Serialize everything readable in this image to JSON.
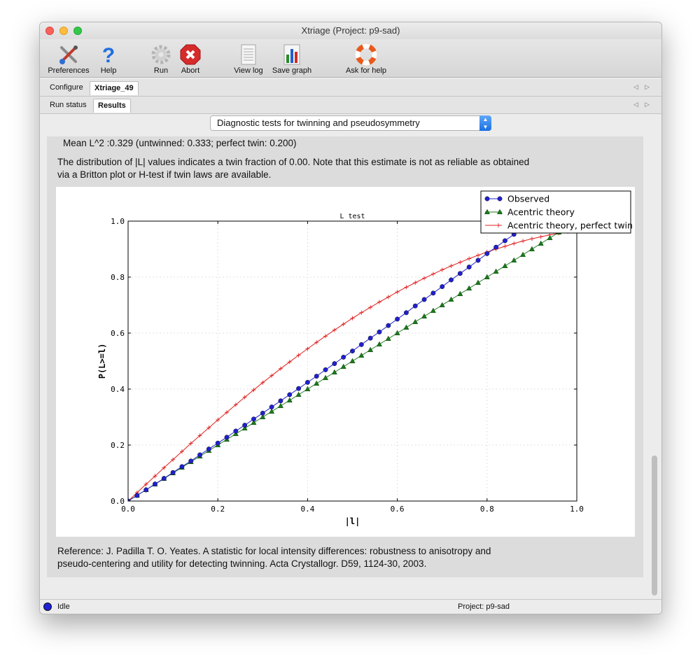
{
  "window": {
    "title": "Xtriage (Project: p9-sad)"
  },
  "toolbar": {
    "preferences": "Preferences",
    "help": "Help",
    "run": "Run",
    "abort": "Abort",
    "view_log": "View log",
    "save_graph": "Save graph",
    "ask_for_help": "Ask for help"
  },
  "tabs_top": [
    "Configure",
    "Xtriage_49"
  ],
  "tabs_sub": [
    "Run status",
    "Results"
  ],
  "section_selector": {
    "value": "Diagnostic tests for twinning and pseudosymmetry"
  },
  "results": {
    "mean_l2": "Mean  L^2  :0.329  (untwinned: 0.333; perfect twin: 0.200)",
    "distribution_line1": "The distribution of |L| values indicates a twin fraction of 0.00. Note that this estimate is not as reliable as obtained",
    "distribution_line2": "via a Britton plot or H-test if twin laws are available.",
    "reference_line1": "Reference: J. Padilla  T. O. Yeates. A statistic for local intensity differences: robustness to anisotropy and",
    "reference_line2": "pseudo-centering and utility for detecting twinning. Acta Crystallogr. D59, 1124-30, 2003."
  },
  "status": {
    "state": "Idle",
    "project": "Project: p9-sad"
  },
  "colors": {
    "observed": "#2020d0",
    "acentric": "#1a7a1a",
    "perfect_twin": "#e02020",
    "status_dot": "#1f22d6"
  },
  "chart_data": {
    "type": "line",
    "title": "L test",
    "xlabel": "|l|",
    "ylabel": "P(L>=l)",
    "xlim": [
      0,
      1
    ],
    "ylim": [
      0,
      1
    ],
    "x_ticks": [
      "0.0",
      "0.2",
      "0.4",
      "0.6",
      "0.8",
      "1.0"
    ],
    "y_ticks": [
      "0.0",
      "0.2",
      "0.4",
      "0.6",
      "0.8",
      "1.0"
    ],
    "grid": true,
    "legend_position": "top-right",
    "series": [
      {
        "name": "Observed",
        "marker": "circle",
        "x": [
          0,
          0.02,
          0.04,
          0.06,
          0.08,
          0.1,
          0.12,
          0.14,
          0.16,
          0.18,
          0.2,
          0.22,
          0.24,
          0.26,
          0.28,
          0.3,
          0.32,
          0.34,
          0.36,
          0.38,
          0.4,
          0.42,
          0.44,
          0.46,
          0.48,
          0.5,
          0.52,
          0.54,
          0.56,
          0.58,
          0.6,
          0.62,
          0.64,
          0.66,
          0.68,
          0.7,
          0.72,
          0.74,
          0.76,
          0.78,
          0.8,
          0.82,
          0.84,
          0.86,
          0.88,
          0.9,
          0.92,
          0.94,
          0.96,
          0.98
        ],
        "y": [
          0,
          0.02,
          0.04,
          0.061,
          0.081,
          0.102,
          0.123,
          0.143,
          0.165,
          0.186,
          0.207,
          0.228,
          0.25,
          0.271,
          0.293,
          0.314,
          0.336,
          0.358,
          0.38,
          0.402,
          0.424,
          0.446,
          0.469,
          0.491,
          0.514,
          0.536,
          0.559,
          0.582,
          0.604,
          0.627,
          0.65,
          0.673,
          0.697,
          0.72,
          0.743,
          0.766,
          0.79,
          0.813,
          0.836,
          0.86,
          0.884,
          0.907,
          0.93,
          0.953,
          0.972,
          0.985,
          0.993,
          0.997,
          0.999,
          1.0
        ]
      },
      {
        "name": "Acentric theory",
        "marker": "triangle",
        "x": [
          0,
          0.02,
          0.04,
          0.06,
          0.08,
          0.1,
          0.12,
          0.14,
          0.16,
          0.18,
          0.2,
          0.22,
          0.24,
          0.26,
          0.28,
          0.3,
          0.32,
          0.34,
          0.36,
          0.38,
          0.4,
          0.42,
          0.44,
          0.46,
          0.48,
          0.5,
          0.52,
          0.54,
          0.56,
          0.58,
          0.6,
          0.62,
          0.64,
          0.66,
          0.68,
          0.7,
          0.72,
          0.74,
          0.76,
          0.78,
          0.8,
          0.82,
          0.84,
          0.86,
          0.88,
          0.9,
          0.92,
          0.94,
          0.96,
          0.98
        ],
        "y": [
          0,
          0.02,
          0.04,
          0.06,
          0.08,
          0.1,
          0.12,
          0.14,
          0.16,
          0.18,
          0.2,
          0.22,
          0.24,
          0.26,
          0.28,
          0.3,
          0.32,
          0.34,
          0.36,
          0.38,
          0.4,
          0.42,
          0.44,
          0.46,
          0.48,
          0.5,
          0.52,
          0.54,
          0.56,
          0.58,
          0.6,
          0.62,
          0.64,
          0.66,
          0.68,
          0.7,
          0.72,
          0.74,
          0.76,
          0.78,
          0.8,
          0.82,
          0.84,
          0.86,
          0.88,
          0.9,
          0.92,
          0.94,
          0.96,
          0.98
        ]
      },
      {
        "name": "Acentric theory, perfect twin",
        "marker": "plus",
        "x": [
          0,
          0.02,
          0.04,
          0.06,
          0.08,
          0.1,
          0.12,
          0.14,
          0.16,
          0.18,
          0.2,
          0.22,
          0.24,
          0.26,
          0.28,
          0.3,
          0.32,
          0.34,
          0.36,
          0.38,
          0.4,
          0.42,
          0.44,
          0.46,
          0.48,
          0.5,
          0.52,
          0.54,
          0.56,
          0.58,
          0.6,
          0.62,
          0.64,
          0.66,
          0.68,
          0.7,
          0.72,
          0.74,
          0.76,
          0.78,
          0.8,
          0.82,
          0.84,
          0.86,
          0.88,
          0.9,
          0.92,
          0.94,
          0.96,
          0.98
        ],
        "y": [
          0,
          0.03,
          0.06,
          0.089,
          0.119,
          0.148,
          0.177,
          0.206,
          0.234,
          0.262,
          0.29,
          0.317,
          0.344,
          0.371,
          0.397,
          0.423,
          0.448,
          0.473,
          0.497,
          0.521,
          0.544,
          0.567,
          0.589,
          0.611,
          0.632,
          0.653,
          0.673,
          0.692,
          0.711,
          0.729,
          0.747,
          0.764,
          0.78,
          0.796,
          0.811,
          0.826,
          0.84,
          0.853,
          0.866,
          0.878,
          0.89,
          0.9,
          0.91,
          0.92,
          0.929,
          0.937,
          0.944,
          0.951,
          0.957,
          0.962
        ]
      }
    ]
  }
}
